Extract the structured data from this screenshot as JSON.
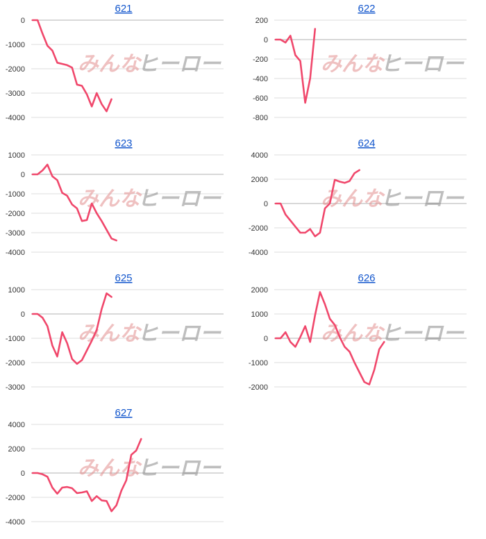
{
  "colors": {
    "line": "#f0476b",
    "grid": "#dddddd",
    "zero": "#b0b0b0",
    "link": "#1155cc"
  },
  "watermark": {
    "left": "みんな",
    "right": "ヒーロー"
  },
  "chart_data": [
    {
      "type": "line",
      "title": "621",
      "yticks": [
        0,
        -1000,
        -2000,
        -3000,
        -4000
      ],
      "ylim": [
        -4000,
        0
      ],
      "n_points": 40,
      "values": [
        0,
        0,
        -550,
        -1050,
        -1250,
        -1750,
        -1800,
        -1850,
        -1950,
        -2650,
        -2700,
        -3050,
        -3550,
        -3000,
        -3450,
        -3750,
        -3250
      ]
    },
    {
      "type": "line",
      "title": "622",
      "yticks": [
        200,
        0,
        -200,
        -400,
        -600,
        -800
      ],
      "ylim": [
        -800,
        200
      ],
      "n_points": 40,
      "values": [
        0,
        0,
        -30,
        40,
        -160,
        -220,
        -650,
        -400,
        110
      ]
    },
    {
      "type": "line",
      "title": "623",
      "yticks": [
        1000,
        0,
        -1000,
        -2000,
        -3000,
        -4000
      ],
      "ylim": [
        -4000,
        1000
      ],
      "n_points": 40,
      "values": [
        0,
        0,
        200,
        500,
        -100,
        -300,
        -950,
        -1100,
        -1550,
        -1750,
        -2400,
        -2350,
        -1500,
        -2000,
        -2400,
        -2850,
        -3300,
        -3400
      ]
    },
    {
      "type": "line",
      "title": "624",
      "yticks": [
        4000,
        2000,
        0,
        -2000,
        -4000
      ],
      "ylim": [
        -4000,
        4000
      ],
      "n_points": 40,
      "values": [
        0,
        0,
        -900,
        -1400,
        -1900,
        -2400,
        -2400,
        -2100,
        -2700,
        -2400,
        -400,
        0,
        1950,
        1800,
        1700,
        1850,
        2500,
        2750
      ]
    },
    {
      "type": "line",
      "title": "625",
      "yticks": [
        1000,
        0,
        -1000,
        -2000,
        -3000
      ],
      "ylim": [
        -3000,
        1000
      ],
      "n_points": 40,
      "values": [
        0,
        0,
        -150,
        -500,
        -1300,
        -1750,
        -750,
        -1200,
        -1850,
        -2050,
        -1900,
        -1500,
        -1100,
        -650,
        200,
        850,
        700
      ]
    },
    {
      "type": "line",
      "title": "626",
      "yticks": [
        2000,
        1000,
        0,
        -1000,
        -2000
      ],
      "ylim": [
        -2000,
        2000
      ],
      "n_points": 40,
      "values": [
        0,
        0,
        250,
        -150,
        -350,
        50,
        500,
        -150,
        950,
        1900,
        1400,
        800,
        550,
        50,
        -350,
        -550,
        -1000,
        -1400,
        -1800,
        -1900,
        -1300,
        -450,
        -150
      ]
    },
    {
      "type": "line",
      "title": "627",
      "yticks": [
        4000,
        2000,
        0,
        -2000,
        -4000
      ],
      "ylim": [
        -4000,
        4000
      ],
      "n_points": 40,
      "values": [
        0,
        0,
        -100,
        -300,
        -1200,
        -1700,
        -1200,
        -1150,
        -1250,
        -1650,
        -1600,
        -1500,
        -2300,
        -1900,
        -2250,
        -2300,
        -3150,
        -2650,
        -1450,
        -600,
        1500,
        1850,
        2800
      ]
    }
  ]
}
